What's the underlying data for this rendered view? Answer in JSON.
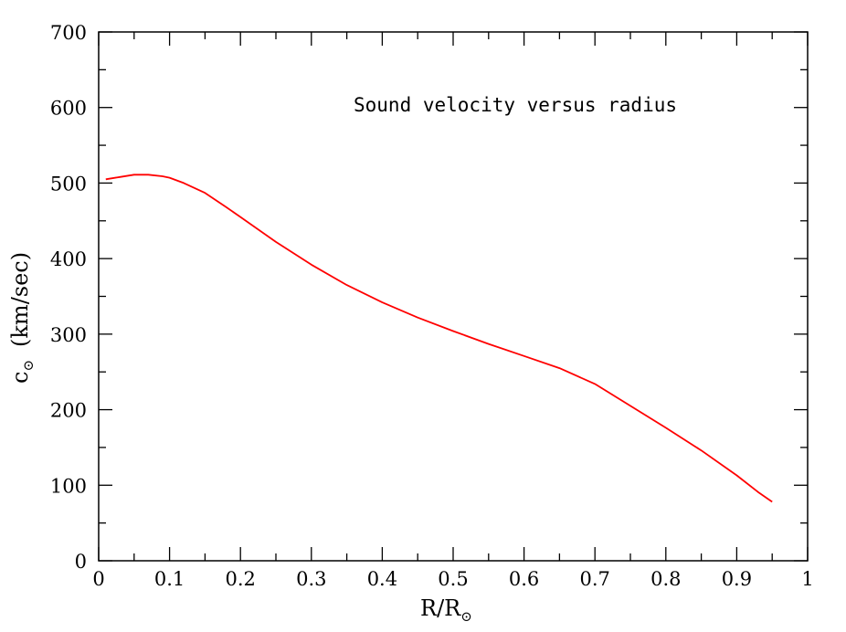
{
  "chart_data": {
    "type": "line",
    "title": "",
    "annotation": "Sound velocity versus radius",
    "xlabel": {
      "main": "R/R",
      "subscript": "⊙"
    },
    "ylabel": {
      "main": "c",
      "subscript": "⊙",
      "rest": "(km/sec)"
    },
    "xlim": [
      0,
      1
    ],
    "ylim": [
      0,
      700
    ],
    "x_ticks": [
      0,
      0.1,
      0.2,
      0.3,
      0.4,
      0.5,
      0.6,
      0.7,
      0.8,
      0.9,
      1
    ],
    "x_tick_labels": [
      "0",
      "0.1",
      "0.2",
      "0.3",
      "0.4",
      "0.5",
      "0.6",
      "0.7",
      "0.8",
      "0.9",
      "1"
    ],
    "y_ticks": [
      0,
      100,
      200,
      300,
      400,
      500,
      600,
      700
    ],
    "y_tick_labels": [
      "0",
      "100",
      "200",
      "300",
      "400",
      "500",
      "600",
      "700"
    ],
    "grid": false,
    "series": [
      {
        "color": "#ff0000",
        "x": [
          0.01,
          0.03,
          0.05,
          0.07,
          0.09,
          0.1,
          0.12,
          0.15,
          0.18,
          0.2,
          0.25,
          0.3,
          0.35,
          0.4,
          0.45,
          0.5,
          0.55,
          0.6,
          0.65,
          0.7,
          0.75,
          0.8,
          0.85,
          0.9,
          0.93,
          0.95
        ],
        "y": [
          505,
          508,
          511,
          511,
          509,
          507,
          500,
          487,
          468,
          455,
          422,
          392,
          365,
          342,
          322,
          304,
          287,
          271,
          255,
          234,
          205,
          176,
          146,
          113,
          91,
          78
        ]
      }
    ]
  }
}
